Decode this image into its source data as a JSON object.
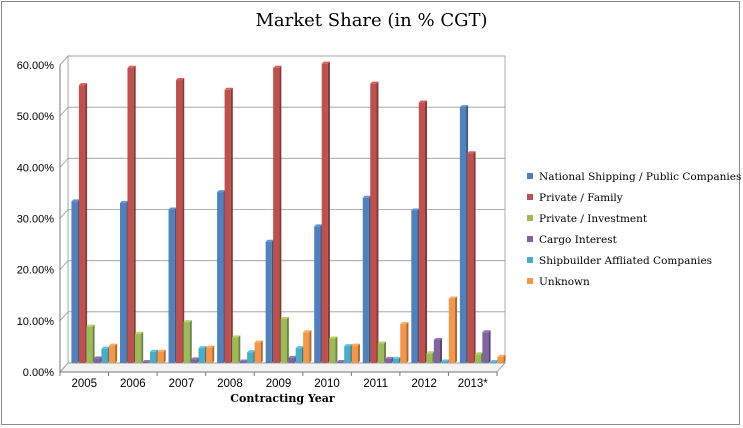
{
  "chart_data": {
    "type": "bar",
    "title": "Market Share (in % CGT)",
    "xlabel": "Contracting Year",
    "ylabel": "",
    "ylim": [
      0,
      0.6
    ],
    "yticks": [
      "0.00%",
      "10.00%",
      "20.00%",
      "30.00%",
      "40.00%",
      "50.00%",
      "60.00%"
    ],
    "categories": [
      "2005",
      "2006",
      "2007",
      "2008",
      "2009",
      "2010",
      "2011",
      "2012",
      "2013*"
    ],
    "grid": true,
    "legend_position": "right",
    "series": [
      {
        "name": "National Shipping  / Public Companies",
        "color": "#4f81bd",
        "values": [
          0.316,
          0.313,
          0.3,
          0.334,
          0.237,
          0.267,
          0.323,
          0.298,
          0.5
        ]
      },
      {
        "name": "Private / Family",
        "color": "#c0504d",
        "values": [
          0.543,
          0.577,
          0.553,
          0.534,
          0.577,
          0.585,
          0.546,
          0.509,
          0.41
        ]
      },
      {
        "name": "Private / Investment",
        "color": "#9bbb59",
        "values": [
          0.071,
          0.057,
          0.08,
          0.05,
          0.086,
          0.048,
          0.038,
          0.019,
          0.017
        ]
      },
      {
        "name": "Cargo Interest",
        "color": "#8064a2",
        "values": [
          0.009,
          0.002,
          0.007,
          0.003,
          0.01,
          0.002,
          0.008,
          0.045,
          0.06
        ]
      },
      {
        "name": "Shipbuilder Affliated Companies",
        "color": "#4bacc6",
        "values": [
          0.028,
          0.022,
          0.029,
          0.021,
          0.029,
          0.033,
          0.008,
          0.003,
          0.002
        ]
      },
      {
        "name": "Unknown",
        "color": "#f79646",
        "values": [
          0.034,
          0.022,
          0.03,
          0.04,
          0.06,
          0.034,
          0.076,
          0.126,
          0.012
        ]
      }
    ]
  }
}
